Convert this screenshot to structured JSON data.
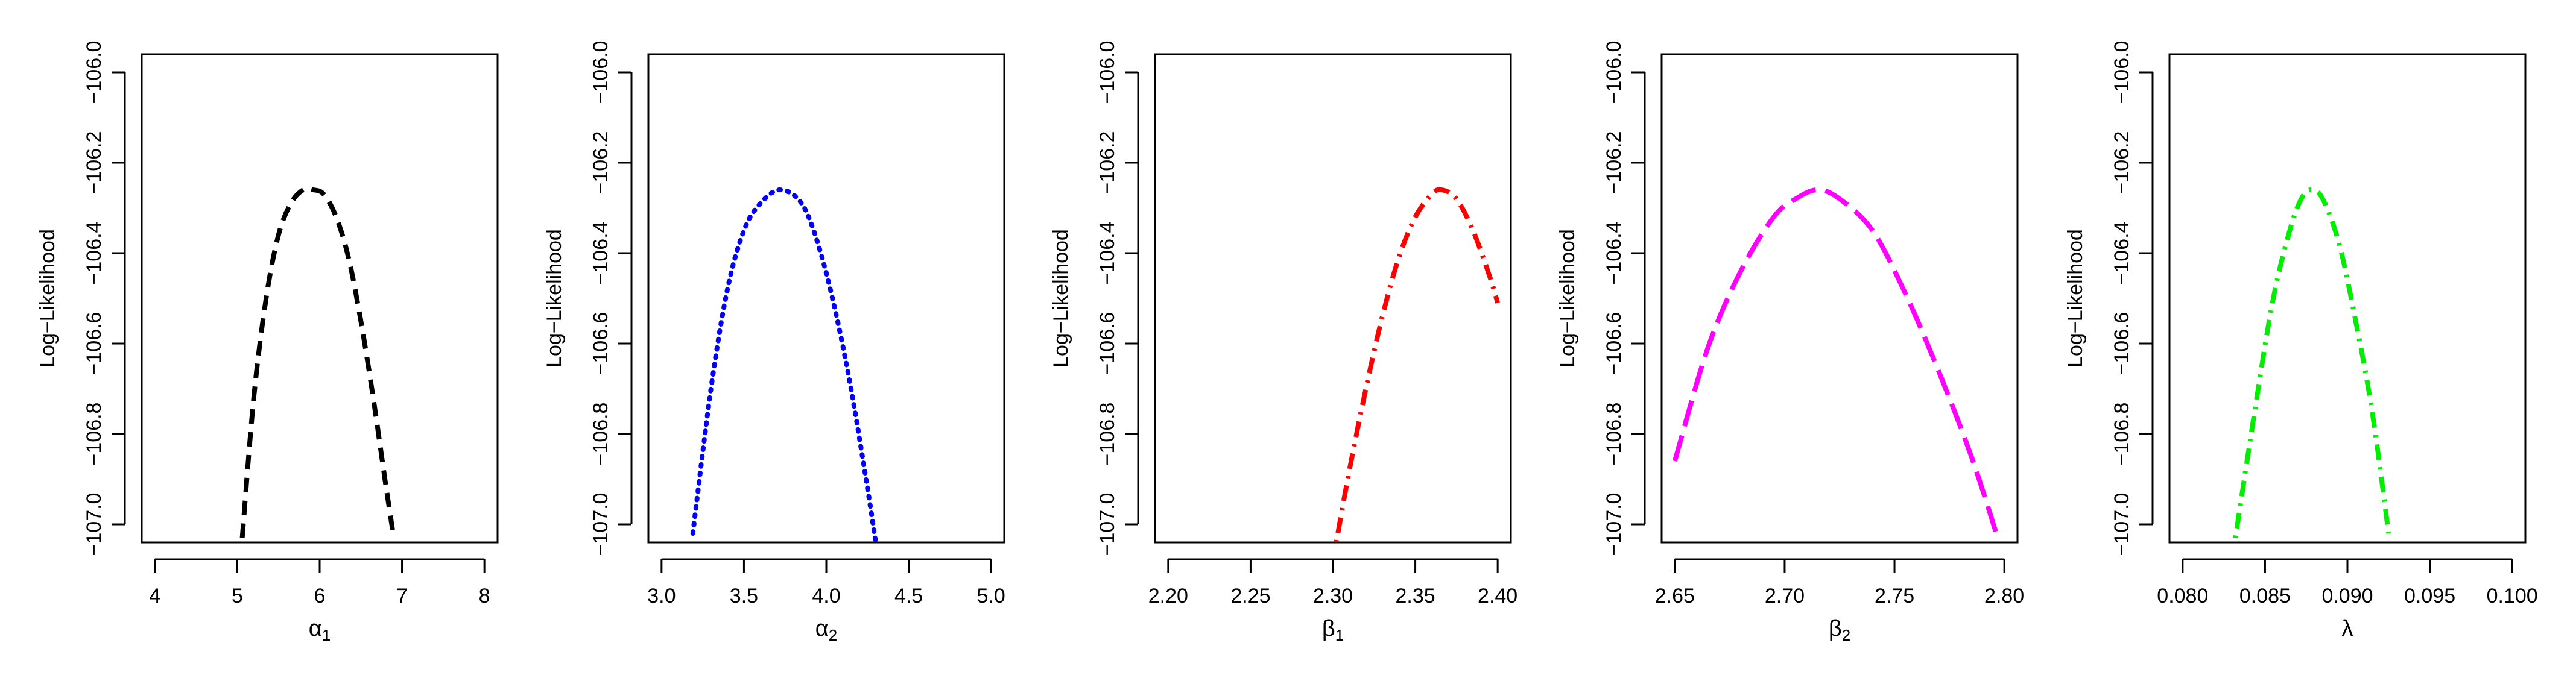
{
  "chart_data": [
    {
      "type": "line",
      "xlabel": "α",
      "xlabel_sub": "1",
      "ylabel": "Log−Likelihood",
      "xlim": [
        4,
        8
      ],
      "ylim": [
        -107.0,
        -106.0
      ],
      "xticks": [
        4,
        5,
        6,
        7,
        8
      ],
      "xtick_labels": [
        "4",
        "5",
        "6",
        "7",
        "8"
      ],
      "yticks": [
        -107.0,
        -106.8,
        -106.6,
        -106.4,
        -106.2,
        -106.0
      ],
      "ytick_labels": [
        "−107.0",
        "−106.8",
        "−106.6",
        "−106.4",
        "−106.2",
        "−106.0"
      ],
      "color": "#000000",
      "line_style": "dashed",
      "series": [
        {
          "x": [
            5.06,
            5.2,
            5.35,
            5.5,
            5.65,
            5.8,
            5.92,
            6.05,
            6.2,
            6.35,
            6.5,
            6.65,
            6.8,
            6.9
          ],
          "y": [
            -107.03,
            -106.72,
            -106.5,
            -106.36,
            -106.29,
            -106.26,
            -106.26,
            -106.27,
            -106.32,
            -106.41,
            -106.55,
            -106.72,
            -106.91,
            -107.03
          ]
        }
      ]
    },
    {
      "type": "line",
      "xlabel": "α",
      "xlabel_sub": "2",
      "ylabel": "Log−Likelihood",
      "xlim": [
        3.0,
        5.0
      ],
      "ylim": [
        -107.0,
        -106.0
      ],
      "xticks": [
        3.0,
        3.5,
        4.0,
        4.5,
        5.0
      ],
      "xtick_labels": [
        "3.0",
        "3.5",
        "4.0",
        "4.5",
        "5.0"
      ],
      "yticks": [
        -107.0,
        -106.8,
        -106.6,
        -106.4,
        -106.2,
        -106.0
      ],
      "ytick_labels": [
        "−107.0",
        "−106.8",
        "−106.6",
        "−106.4",
        "−106.2",
        "−106.0"
      ],
      "color": "#0000ff",
      "line_style": "dotted",
      "series": [
        {
          "x": [
            3.19,
            3.3,
            3.4,
            3.5,
            3.6,
            3.72,
            3.85,
            3.95,
            4.05,
            4.15,
            4.25,
            4.3
          ],
          "y": [
            -107.02,
            -106.7,
            -106.48,
            -106.35,
            -106.29,
            -106.26,
            -106.29,
            -106.38,
            -106.52,
            -106.7,
            -106.92,
            -107.04
          ]
        }
      ]
    },
    {
      "type": "line",
      "xlabel": "β",
      "xlabel_sub": "1",
      "ylabel": "Log−Likelihood",
      "xlim": [
        2.2,
        2.4
      ],
      "ylim": [
        -107.0,
        -106.0
      ],
      "xticks": [
        2.2,
        2.25,
        2.3,
        2.35,
        2.4
      ],
      "xtick_labels": [
        "2.20",
        "2.25",
        "2.30",
        "2.35",
        "2.40"
      ],
      "yticks": [
        -107.0,
        -106.8,
        -106.6,
        -106.4,
        -106.2,
        -106.0
      ],
      "ytick_labels": [
        "−107.0",
        "−106.8",
        "−106.6",
        "−106.4",
        "−106.2",
        "−106.0"
      ],
      "color": "#ff0000",
      "line_style": "dashdot",
      "series": [
        {
          "x": [
            2.302,
            2.31,
            2.32,
            2.33,
            2.34,
            2.35,
            2.36,
            2.366,
            2.375,
            2.385,
            2.395,
            2.4
          ],
          "y": [
            -107.04,
            -106.88,
            -106.7,
            -106.54,
            -106.41,
            -106.32,
            -106.27,
            -106.26,
            -106.28,
            -106.35,
            -106.45,
            -106.51
          ]
        }
      ]
    },
    {
      "type": "line",
      "xlabel": "β",
      "xlabel_sub": "2",
      "ylabel": "Log−Likelihood",
      "xlim": [
        2.65,
        2.8
      ],
      "ylim": [
        -107.0,
        -106.0
      ],
      "xticks": [
        2.65,
        2.7,
        2.75,
        2.8
      ],
      "xtick_labels": [
        "2.65",
        "2.70",
        "2.75",
        "2.80"
      ],
      "yticks": [
        -107.0,
        -106.8,
        -106.6,
        -106.4,
        -106.2,
        -106.0
      ],
      "ytick_labels": [
        "−107.0",
        "−106.8",
        "−106.6",
        "−106.4",
        "−106.2",
        "−106.0"
      ],
      "color": "#ff00ff",
      "line_style": "longdash",
      "series": [
        {
          "x": [
            2.65,
            2.665,
            2.68,
            2.695,
            2.705,
            2.715,
            2.725,
            2.74,
            2.755,
            2.77,
            2.785,
            2.797
          ],
          "y": [
            -106.86,
            -106.61,
            -106.44,
            -106.32,
            -106.28,
            -106.26,
            -106.28,
            -106.35,
            -106.49,
            -106.66,
            -106.85,
            -107.03
          ]
        }
      ]
    },
    {
      "type": "line",
      "xlabel": "λ",
      "xlabel_sub": "",
      "ylabel": "Log−Likelihood",
      "xlim": [
        0.08,
        0.1
      ],
      "ylim": [
        -107.0,
        -106.0
      ],
      "xticks": [
        0.08,
        0.085,
        0.09,
        0.095,
        0.1
      ],
      "xtick_labels": [
        "0.080",
        "0.085",
        "0.090",
        "0.095",
        "0.100"
      ],
      "yticks": [
        -107.0,
        -106.8,
        -106.6,
        -106.4,
        -106.2,
        -106.0
      ],
      "ytick_labels": [
        "−107.0",
        "−106.8",
        "−106.6",
        "−106.4",
        "−106.2",
        "−106.0"
      ],
      "color": "#00ee00",
      "line_style": "dashdot",
      "series": [
        {
          "x": [
            0.0832,
            0.0845,
            0.0855,
            0.0865,
            0.0872,
            0.0878,
            0.0885,
            0.0895,
            0.0905,
            0.0915,
            0.0925
          ],
          "y": [
            -107.03,
            -106.72,
            -106.5,
            -106.35,
            -106.28,
            -106.26,
            -106.28,
            -106.38,
            -106.55,
            -106.75,
            -107.02
          ]
        }
      ]
    }
  ]
}
